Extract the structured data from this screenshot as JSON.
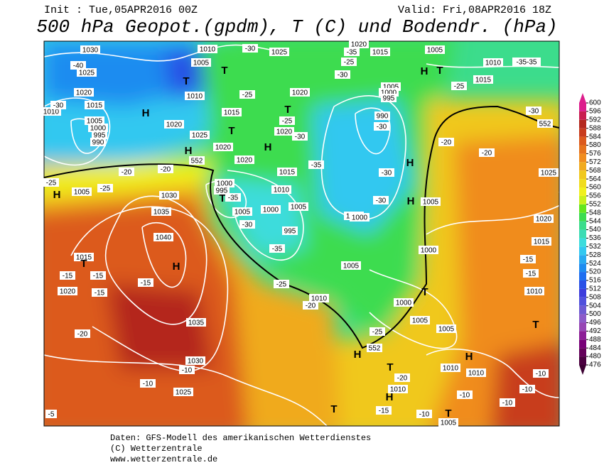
{
  "header": {
    "init": "Init : Tue,05APR2016 00Z",
    "valid": "Valid: Fri,08APR2016 18Z",
    "title": "500 hPa Geopot.(gpdm), T (C) und Bodendr. (hPa)"
  },
  "footer": [
    "Daten: GFS-Modell des amerikanischen Wetterdienstes",
    "(C) Wetterzentrale",
    "www.wetterzentrale.de"
  ],
  "colorbar": {
    "ticks": [
      476,
      480,
      484,
      488,
      492,
      496,
      500,
      504,
      508,
      512,
      516,
      520,
      524,
      528,
      532,
      536,
      540,
      544,
      548,
      552,
      556,
      560,
      564,
      568,
      572,
      576,
      580,
      584,
      588,
      592,
      596,
      600
    ],
    "colors": [
      "#4b0040",
      "#64005a",
      "#780078",
      "#8c1e96",
      "#9646b4",
      "#8c5ac8",
      "#6e5ad2",
      "#5050dc",
      "#3c3cdc",
      "#2850e6",
      "#1e6ef0",
      "#1e8cf0",
      "#28aaf0",
      "#32c8f0",
      "#3cdcdc",
      "#3cdcb4",
      "#3cdc8c",
      "#3cdc50",
      "#64e61e",
      "#c8f01e",
      "#f0f01e",
      "#f0dc1e",
      "#f0c81e",
      "#f0aa1e",
      "#f08c1e",
      "#e6731e",
      "#dc5a1e",
      "#c83c1e",
      "#b4281e",
      "#c81e50",
      "#dc1e8c"
    ]
  },
  "map_labels": [
    "1030",
    "-40",
    "1025",
    "1020",
    "1015",
    "1005",
    "1000",
    "995",
    "990",
    "1010",
    "-30",
    "H",
    "1020",
    "1025",
    "1020",
    "1020",
    "552",
    "-20",
    "-20",
    "-25",
    "1005",
    "-25",
    "H",
    "1030",
    "1035",
    "1040",
    "H",
    "1015",
    "T",
    "-15",
    "-15",
    "1020",
    "-15",
    "-15",
    "1035",
    "-20",
    "1030",
    "-10",
    "-10",
    "1025",
    "-5",
    "T",
    "T",
    "H",
    "1010",
    "1005",
    "1010",
    "1015",
    "T",
    "H",
    "1025",
    "-30",
    "-25",
    "1020",
    "T",
    "-25",
    "1020",
    "-30",
    "1015",
    "1010",
    "-35",
    "1000",
    "995",
    "T",
    "-35",
    "1005",
    "1000",
    "1005",
    "-30",
    "995",
    "-35",
    "-25",
    "1010",
    "-20",
    "1005",
    "1000",
    "-30",
    "H",
    "1005",
    "1000",
    "T",
    "1000",
    "1005",
    "1005",
    "-25",
    "552",
    "H",
    "T",
    "-20",
    "1010",
    "H",
    "T",
    "-15",
    "-10",
    "T",
    "1005",
    "-10",
    "H",
    "1010",
    "1010",
    "-10",
    "-10",
    "-10",
    "T",
    "-15",
    "1010",
    "-15",
    "1015",
    "1020",
    "1025",
    "-20",
    "-20",
    "552",
    "-30",
    "1015",
    "-25",
    "1010",
    "-35-35",
    "H",
    "T",
    "1015",
    "1005",
    "1020",
    "-35",
    "-30",
    "-25",
    "1005",
    "1000",
    "995",
    "990",
    "-30",
    "H",
    "-30",
    "1000"
  ]
}
